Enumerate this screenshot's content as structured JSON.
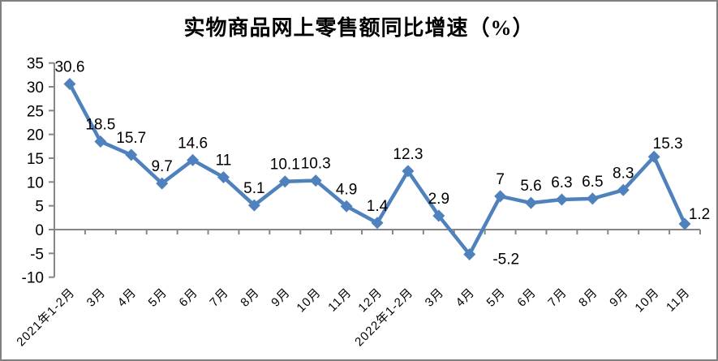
{
  "chart_data": {
    "type": "line",
    "title": "实物商品网上零售额同比增速（%）",
    "categories": [
      "2021年1-2月",
      "3月",
      "4月",
      "5月",
      "6月",
      "7月",
      "8月",
      "9月",
      "10月",
      "11月",
      "12月",
      "2022年1-2月",
      "3月",
      "4月",
      "5月",
      "6月",
      "7月",
      "8月",
      "9月",
      "10月",
      "11月"
    ],
    "values": [
      30.6,
      18.5,
      15.7,
      9.7,
      14.6,
      11,
      5.1,
      10.1,
      10.3,
      4.9,
      1.4,
      12.3,
      2.9,
      -5.2,
      7,
      5.6,
      6.3,
      6.5,
      8.3,
      15.3,
      1.2
    ],
    "point_labels": [
      "30.6",
      "18.5",
      "15.7",
      "9.7",
      "14.6",
      "11",
      "5.1",
      "10.1",
      "10.3",
      "4.9",
      "1.4",
      "12.3",
      "2.9",
      "-5.2",
      "7",
      "5.6",
      "6.3",
      "6.5",
      "8.3",
      "15.3",
      "1.2"
    ],
    "yticks": [
      35,
      30,
      25,
      20,
      15,
      10,
      5,
      0,
      -5,
      -10
    ],
    "ylim": [
      -10,
      35
    ],
    "xlabel": "",
    "ylabel": "",
    "grid": false,
    "legend_position": "none",
    "marker": "diamond",
    "x_label_rotation_deg": -45,
    "colors": {
      "series": "#4F81BD",
      "axis": "#868686",
      "text": "#000000",
      "background": "#FFFFFF",
      "frame_border": "#808080"
    }
  }
}
